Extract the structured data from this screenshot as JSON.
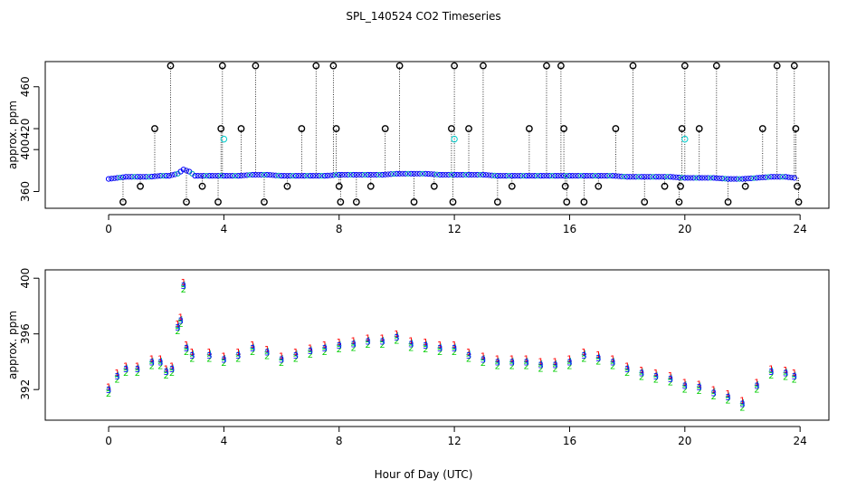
{
  "chart_data": {
    "title": "SPL_140524  CO2 Timeseries",
    "xlabel": "Hour of Day (UTC)",
    "panels": [
      {
        "id": "top",
        "type": "scatter",
        "ylabel": "approx. ppm",
        "xlim": [
          -2.2,
          25
        ],
        "ylim": [
          344,
          484
        ],
        "xticks": [
          0,
          4,
          8,
          12,
          16,
          20,
          24
        ],
        "yticks": [
          360,
          400,
          420,
          460
        ],
        "baseline_points": [
          [
            0.0,
            372
          ],
          [
            0.3,
            373
          ],
          [
            0.6,
            374
          ],
          [
            1.0,
            374
          ],
          [
            1.4,
            374
          ],
          [
            1.8,
            375
          ],
          [
            2.1,
            375
          ],
          [
            2.4,
            377
          ],
          [
            2.6,
            381
          ],
          [
            2.8,
            379
          ],
          [
            3.0,
            375
          ],
          [
            3.5,
            375
          ],
          [
            4.0,
            375
          ],
          [
            4.5,
            375
          ],
          [
            5.0,
            376
          ],
          [
            5.5,
            376
          ],
          [
            6.0,
            375
          ],
          [
            6.5,
            375
          ],
          [
            7.0,
            375
          ],
          [
            7.5,
            375
          ],
          [
            8.0,
            376
          ],
          [
            8.5,
            376
          ],
          [
            9.0,
            376
          ],
          [
            9.5,
            376
          ],
          [
            10.0,
            377
          ],
          [
            10.5,
            377
          ],
          [
            11.0,
            377
          ],
          [
            11.5,
            376
          ],
          [
            12.0,
            376
          ],
          [
            12.5,
            376
          ],
          [
            13.0,
            376
          ],
          [
            13.5,
            375
          ],
          [
            14.0,
            375
          ],
          [
            14.5,
            375
          ],
          [
            15.0,
            375
          ],
          [
            15.5,
            375
          ],
          [
            16.0,
            375
          ],
          [
            16.5,
            375
          ],
          [
            17.0,
            375
          ],
          [
            17.5,
            375
          ],
          [
            18.0,
            374
          ],
          [
            18.5,
            374
          ],
          [
            19.0,
            374
          ],
          [
            19.5,
            374
          ],
          [
            20.0,
            373
          ],
          [
            20.5,
            373
          ],
          [
            21.0,
            373
          ],
          [
            21.5,
            372
          ],
          [
            22.0,
            372
          ],
          [
            22.5,
            373
          ],
          [
            23.0,
            374
          ],
          [
            23.5,
            374
          ],
          [
            23.8,
            373
          ]
        ],
        "outliers": [
          [
            0.5,
            350
          ],
          [
            1.1,
            365
          ],
          [
            1.6,
            420
          ],
          [
            2.15,
            480
          ],
          [
            2.7,
            350
          ],
          [
            3.25,
            365
          ],
          [
            3.8,
            350
          ],
          [
            3.9,
            420
          ],
          [
            3.95,
            480
          ],
          [
            4.6,
            420
          ],
          [
            5.1,
            480
          ],
          [
            5.4,
            350
          ],
          [
            6.2,
            365
          ],
          [
            6.7,
            420
          ],
          [
            7.2,
            480
          ],
          [
            7.8,
            480
          ],
          [
            7.9,
            420
          ],
          [
            8.0,
            365
          ],
          [
            8.05,
            350
          ],
          [
            8.6,
            350
          ],
          [
            9.1,
            365
          ],
          [
            9.6,
            420
          ],
          [
            10.1,
            480
          ],
          [
            10.6,
            350
          ],
          [
            11.3,
            365
          ],
          [
            11.9,
            420
          ],
          [
            11.95,
            350
          ],
          [
            12.0,
            480
          ],
          [
            12.5,
            420
          ],
          [
            13.0,
            480
          ],
          [
            13.5,
            350
          ],
          [
            14.0,
            365
          ],
          [
            14.6,
            420
          ],
          [
            15.2,
            480
          ],
          [
            15.7,
            480
          ],
          [
            15.8,
            420
          ],
          [
            15.85,
            365
          ],
          [
            15.9,
            350
          ],
          [
            16.5,
            350
          ],
          [
            17.0,
            365
          ],
          [
            17.6,
            420
          ],
          [
            18.2,
            480
          ],
          [
            18.6,
            350
          ],
          [
            19.3,
            365
          ],
          [
            19.8,
            350
          ],
          [
            19.85,
            365
          ],
          [
            19.9,
            420
          ],
          [
            20.0,
            480
          ],
          [
            20.5,
            420
          ],
          [
            21.1,
            480
          ],
          [
            21.5,
            350
          ],
          [
            22.1,
            365
          ],
          [
            22.7,
            420
          ],
          [
            23.2,
            480
          ],
          [
            23.8,
            480
          ],
          [
            23.85,
            420
          ],
          [
            23.9,
            365
          ],
          [
            23.95,
            350
          ]
        ],
        "cyan_points": [
          [
            4.0,
            410
          ],
          [
            12.0,
            410
          ],
          [
            20.0,
            410
          ]
        ]
      },
      {
        "id": "bottom",
        "type": "line",
        "ylabel": "approx. ppm",
        "xlim": [
          -2.2,
          25
        ],
        "ylim": [
          389.8,
          400.6
        ],
        "xticks": [
          0,
          4,
          8,
          12,
          16,
          20,
          24
        ],
        "yticks": [
          392,
          396,
          400
        ],
        "series": [
          {
            "name": "1",
            "color": "#ff0000",
            "dy": 0.25
          },
          {
            "name": "2",
            "color": "#00cc00",
            "dy": -0.25
          },
          {
            "name": "3",
            "color": "#0000ff",
            "dy": 0.0
          },
          {
            "name": "4",
            "color": "#00bcbc",
            "dy": 0.1
          }
        ],
        "x": [
          0,
          0.3,
          0.6,
          1,
          1.5,
          1.8,
          2,
          2.2,
          2.4,
          2.5,
          2.6,
          2.7,
          2.9,
          3.5,
          4,
          4.5,
          5,
          5.5,
          6,
          6.5,
          7,
          7.5,
          8,
          8.5,
          9,
          9.5,
          10,
          10.5,
          11,
          11.5,
          12,
          12.5,
          13,
          13.5,
          14,
          14.5,
          15,
          15.5,
          16,
          16.5,
          17,
          17.5,
          18,
          18.5,
          19,
          19.5,
          20,
          20.5,
          21,
          21.5,
          22,
          22.5,
          23,
          23.5,
          23.8
        ],
        "values": [
          392,
          393,
          393.5,
          393.5,
          394,
          394,
          393.3,
          393.5,
          396.5,
          397,
          399.5,
          395,
          394.5,
          394.5,
          394.2,
          394.5,
          395,
          394.7,
          394.2,
          394.5,
          394.8,
          395,
          395.2,
          395.3,
          395.5,
          395.5,
          395.8,
          395.3,
          395.2,
          395,
          395,
          394.5,
          394.2,
          394,
          394,
          394,
          393.8,
          393.8,
          394,
          394.5,
          394.3,
          394,
          393.5,
          393.2,
          393,
          392.8,
          392.3,
          392.2,
          391.8,
          391.5,
          391,
          392.3,
          393.3,
          393.2,
          393
        ]
      }
    ]
  }
}
